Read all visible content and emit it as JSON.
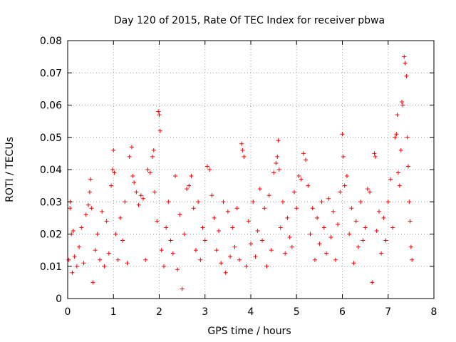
{
  "chart_data": {
    "type": "scatter",
    "title": "Day 120 of 2015, Rate Of TEC Index for receiver pbwa",
    "xlabel": "GPS time / hours",
    "ylabel": "ROTI / TECUs",
    "xlim": [
      0,
      8
    ],
    "ylim": [
      0,
      0.08
    ],
    "xticks": [
      "0",
      "1",
      "2",
      "3",
      "4",
      "5",
      "6",
      "7",
      "8"
    ],
    "yticks": [
      "0",
      "0.01",
      "0.02",
      "0.03",
      "0.04",
      "0.05",
      "0.06",
      "0.07",
      "0.08"
    ],
    "grid": true,
    "marker": "+",
    "color": "#ff0000",
    "series": [
      {
        "name": "ROTI",
        "points": [
          [
            0.02,
            0.012
          ],
          [
            0.05,
            0.028
          ],
          [
            0.06,
            0.03
          ],
          [
            0.08,
            0.02
          ],
          [
            0.1,
            0.008
          ],
          [
            0.12,
            0.021
          ],
          [
            0.15,
            0.013
          ],
          [
            0.2,
            0.01
          ],
          [
            0.25,
            0.016
          ],
          [
            0.3,
            0.022
          ],
          [
            0.35,
            0.011
          ],
          [
            0.4,
            0.026
          ],
          [
            0.45,
            0.029
          ],
          [
            0.48,
            0.033
          ],
          [
            0.5,
            0.037
          ],
          [
            0.52,
            0.028
          ],
          [
            0.55,
            0.005
          ],
          [
            0.6,
            0.015
          ],
          [
            0.65,
            0.02
          ],
          [
            0.7,
            0.012
          ],
          [
            0.75,
            0.027
          ],
          [
            0.8,
            0.01
          ],
          [
            0.85,
            0.024
          ],
          [
            0.9,
            0.014
          ],
          [
            0.95,
            0.035
          ],
          [
            0.98,
            0.04
          ],
          [
            1.0,
            0.046
          ],
          [
            1.02,
            0.039
          ],
          [
            1.05,
            0.02
          ],
          [
            1.1,
            0.012
          ],
          [
            1.15,
            0.025
          ],
          [
            1.2,
            0.018
          ],
          [
            1.25,
            0.03
          ],
          [
            1.3,
            0.011
          ],
          [
            1.35,
            0.044
          ],
          [
            1.4,
            0.047
          ],
          [
            1.42,
            0.038
          ],
          [
            1.45,
            0.036
          ],
          [
            1.5,
            0.033
          ],
          [
            1.55,
            0.029
          ],
          [
            1.6,
            0.032
          ],
          [
            1.65,
            0.031
          ],
          [
            1.7,
            0.012
          ],
          [
            1.75,
            0.04
          ],
          [
            1.8,
            0.039
          ],
          [
            1.85,
            0.044
          ],
          [
            1.88,
            0.046
          ],
          [
            1.9,
            0.033
          ],
          [
            1.95,
            0.024
          ],
          [
            1.98,
            0.058
          ],
          [
            2.0,
            0.057
          ],
          [
            2.02,
            0.052
          ],
          [
            2.05,
            0.015
          ],
          [
            2.1,
            0.01
          ],
          [
            2.15,
            0.022
          ],
          [
            2.2,
            0.03
          ],
          [
            2.25,
            0.018
          ],
          [
            2.3,
            0.014
          ],
          [
            2.35,
            0.038
          ],
          [
            2.4,
            0.009
          ],
          [
            2.45,
            0.026
          ],
          [
            2.5,
            0.003
          ],
          [
            2.55,
            0.02
          ],
          [
            2.6,
            0.034
          ],
          [
            2.65,
            0.035
          ],
          [
            2.7,
            0.038
          ],
          [
            2.75,
            0.028
          ],
          [
            2.8,
            0.015
          ],
          [
            2.85,
            0.03
          ],
          [
            2.9,
            0.012
          ],
          [
            2.95,
            0.022
          ],
          [
            3.0,
            0.018
          ],
          [
            3.05,
            0.041
          ],
          [
            3.1,
            0.04
          ],
          [
            3.15,
            0.032
          ],
          [
            3.2,
            0.025
          ],
          [
            3.25,
            0.015
          ],
          [
            3.3,
            0.021
          ],
          [
            3.35,
            0.011
          ],
          [
            3.4,
            0.03
          ],
          [
            3.45,
            0.008
          ],
          [
            3.5,
            0.027
          ],
          [
            3.55,
            0.013
          ],
          [
            3.6,
            0.022
          ],
          [
            3.65,
            0.016
          ],
          [
            3.7,
            0.028
          ],
          [
            3.75,
            0.012
          ],
          [
            3.8,
            0.048
          ],
          [
            3.82,
            0.046
          ],
          [
            3.85,
            0.044
          ],
          [
            3.9,
            0.01
          ],
          [
            3.95,
            0.024
          ],
          [
            4.0,
            0.017
          ],
          [
            4.05,
            0.03
          ],
          [
            4.1,
            0.013
          ],
          [
            4.15,
            0.021
          ],
          [
            4.2,
            0.034
          ],
          [
            4.25,
            0.018
          ],
          [
            4.3,
            0.028
          ],
          [
            4.35,
            0.01
          ],
          [
            4.4,
            0.032
          ],
          [
            4.45,
            0.015
          ],
          [
            4.5,
            0.039
          ],
          [
            4.55,
            0.042
          ],
          [
            4.58,
            0.044
          ],
          [
            4.6,
            0.049
          ],
          [
            4.62,
            0.04
          ],
          [
            4.65,
            0.022
          ],
          [
            4.7,
            0.03
          ],
          [
            4.75,
            0.014
          ],
          [
            4.8,
            0.025
          ],
          [
            4.85,
            0.019
          ],
          [
            4.9,
            0.016
          ],
          [
            4.95,
            0.033
          ],
          [
            5.0,
            0.028
          ],
          [
            5.05,
            0.038
          ],
          [
            5.1,
            0.037
          ],
          [
            5.15,
            0.045
          ],
          [
            5.2,
            0.043
          ],
          [
            5.25,
            0.035
          ],
          [
            5.3,
            0.02
          ],
          [
            5.35,
            0.028
          ],
          [
            5.4,
            0.012
          ],
          [
            5.45,
            0.025
          ],
          [
            5.5,
            0.017
          ],
          [
            5.55,
            0.03
          ],
          [
            5.6,
            0.022
          ],
          [
            5.65,
            0.014
          ],
          [
            5.7,
            0.031
          ],
          [
            5.75,
            0.019
          ],
          [
            5.8,
            0.027
          ],
          [
            5.85,
            0.012
          ],
          [
            5.9,
            0.023
          ],
          [
            5.95,
            0.033
          ],
          [
            6.0,
            0.051
          ],
          [
            6.02,
            0.044
          ],
          [
            6.05,
            0.035
          ],
          [
            6.1,
            0.038
          ],
          [
            6.15,
            0.02
          ],
          [
            6.2,
            0.028
          ],
          [
            6.25,
            0.011
          ],
          [
            6.3,
            0.024
          ],
          [
            6.35,
            0.016
          ],
          [
            6.4,
            0.03
          ],
          [
            6.45,
            0.018
          ],
          [
            6.5,
            0.022
          ],
          [
            6.55,
            0.034
          ],
          [
            6.6,
            0.033
          ],
          [
            6.65,
            0.005
          ],
          [
            6.7,
            0.045
          ],
          [
            6.72,
            0.044
          ],
          [
            6.75,
            0.021
          ],
          [
            6.8,
            0.027
          ],
          [
            6.85,
            0.014
          ],
          [
            6.9,
            0.025
          ],
          [
            6.95,
            0.018
          ],
          [
            7.0,
            0.03
          ],
          [
            7.05,
            0.037
          ],
          [
            7.1,
            0.022
          ],
          [
            7.15,
            0.05
          ],
          [
            7.18,
            0.051
          ],
          [
            7.2,
            0.057
          ],
          [
            7.22,
            0.039
          ],
          [
            7.25,
            0.035
          ],
          [
            7.28,
            0.046
          ],
          [
            7.3,
            0.061
          ],
          [
            7.32,
            0.06
          ],
          [
            7.35,
            0.075
          ],
          [
            7.37,
            0.073
          ],
          [
            7.4,
            0.069
          ],
          [
            7.42,
            0.05
          ],
          [
            7.44,
            0.041
          ],
          [
            7.46,
            0.03
          ],
          [
            7.48,
            0.024
          ],
          [
            7.5,
            0.016
          ],
          [
            7.52,
            0.012
          ]
        ]
      }
    ]
  }
}
